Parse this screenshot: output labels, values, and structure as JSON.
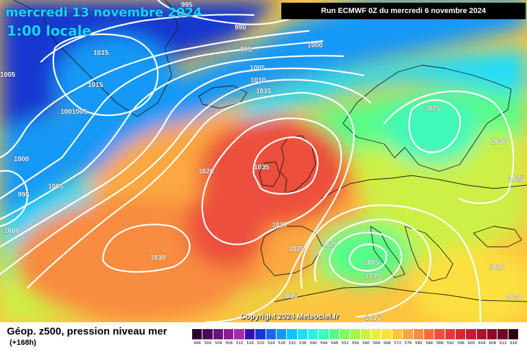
{
  "header": {
    "date": "mercredi 13 novembre 2024",
    "time": "1:00 locale",
    "run_info": "Run ECMWF 0Z du mercredi 6 novembre 2024"
  },
  "footer": {
    "field_title": "Géop. z500, pression niveau mer",
    "lead_time": "(+168h)",
    "copyright": "Copyright 2024 Meteociel.fr"
  },
  "legend": {
    "values": [
      "496",
      "500",
      "504",
      "508",
      "512",
      "516",
      "520",
      "524",
      "528",
      "532",
      "536",
      "540",
      "544",
      "548",
      "552",
      "556",
      "560",
      "564",
      "568",
      "572",
      "576",
      "580",
      "584",
      "588",
      "592",
      "596",
      "600",
      "604",
      "608",
      "612",
      "616"
    ],
    "colors": [
      "#2c0030",
      "#4a0a5a",
      "#6a1478",
      "#8c1e98",
      "#a828b0",
      "#3a0fb0",
      "#1838d0",
      "#1868ea",
      "#1898f6",
      "#18c0fc",
      "#20dcf8",
      "#30eee0",
      "#40f8b8",
      "#58fc88",
      "#80fc60",
      "#a8f84c",
      "#ccf044",
      "#ecec40",
      "#fce040",
      "#fcc440",
      "#fca840",
      "#f88c40",
      "#f46c3c",
      "#ec503c",
      "#e2383c",
      "#d42838",
      "#c01c34",
      "#a81430",
      "#8c0c2a",
      "#6c0622",
      "#2a0010"
    ]
  },
  "map": {
    "colors": {
      "deep_blue": "#1838d0",
      "mid_blue": "#1898f6",
      "cyan": "#20dcf8",
      "green": "#58fc88",
      "yellow": "#ecec40",
      "orange": "#fca840",
      "red": "#ec503c"
    },
    "isobar_labels": [
      "995",
      "990",
      "1015",
      "1000",
      "995",
      "1005",
      "1005",
      "1010",
      "1015",
      "1015",
      "1001005",
      "1025",
      "1030",
      "1000",
      "1020",
      "1035",
      "1025",
      "995",
      "1005",
      "1000",
      "1030",
      "1020",
      "1025",
      "1005",
      "1010",
      "1030",
      "1020",
      "1015",
      "1020",
      "1015"
    ]
  }
}
